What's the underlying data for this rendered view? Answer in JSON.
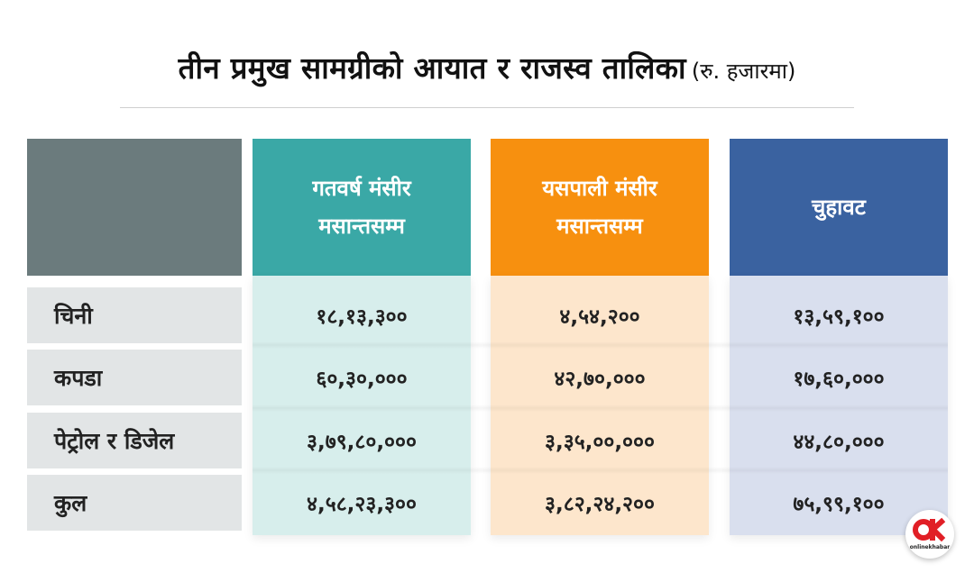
{
  "title": {
    "main": "तीन प्रमुख सामग्रीको आयात र राजस्व तालिका",
    "unit": "(रु. हजारमा)"
  },
  "headers": {
    "prev_line1": "गतवर्ष मंसीर",
    "prev_line2": "मसान्तसम्म",
    "curr_line1": "यसपाली मंसीर",
    "curr_line2": "मसान्तसम्म",
    "diff": "चुहावट"
  },
  "rows": [
    {
      "label": "चिनी",
      "prev": "१८,१३,३००",
      "curr": "४,५४,२००",
      "diff": "१३,५९,१००"
    },
    {
      "label": "कपडा",
      "prev": "६०,३०,०००",
      "curr": "४२,७०,०००",
      "diff": "१७,६०,०००"
    },
    {
      "label": "पेट्रोल र डिजेल",
      "prev": "३,७९,८०,०००",
      "curr": "३,३५,००,०००",
      "diff": "४४,८०,०००"
    },
    {
      "label": "कुल",
      "prev": "४,५८,२३,३००",
      "curr": "३,८२,२४,२००",
      "diff": "७५,९९,१००"
    }
  ],
  "colors": {
    "header_blank": "#6b7b7d",
    "header_prev": "#3aa8a6",
    "header_curr": "#f7900f",
    "header_diff": "#3a62a0"
  },
  "logo": {
    "icon": "onlinekhabar-logo",
    "text": "onlinekhabar"
  }
}
